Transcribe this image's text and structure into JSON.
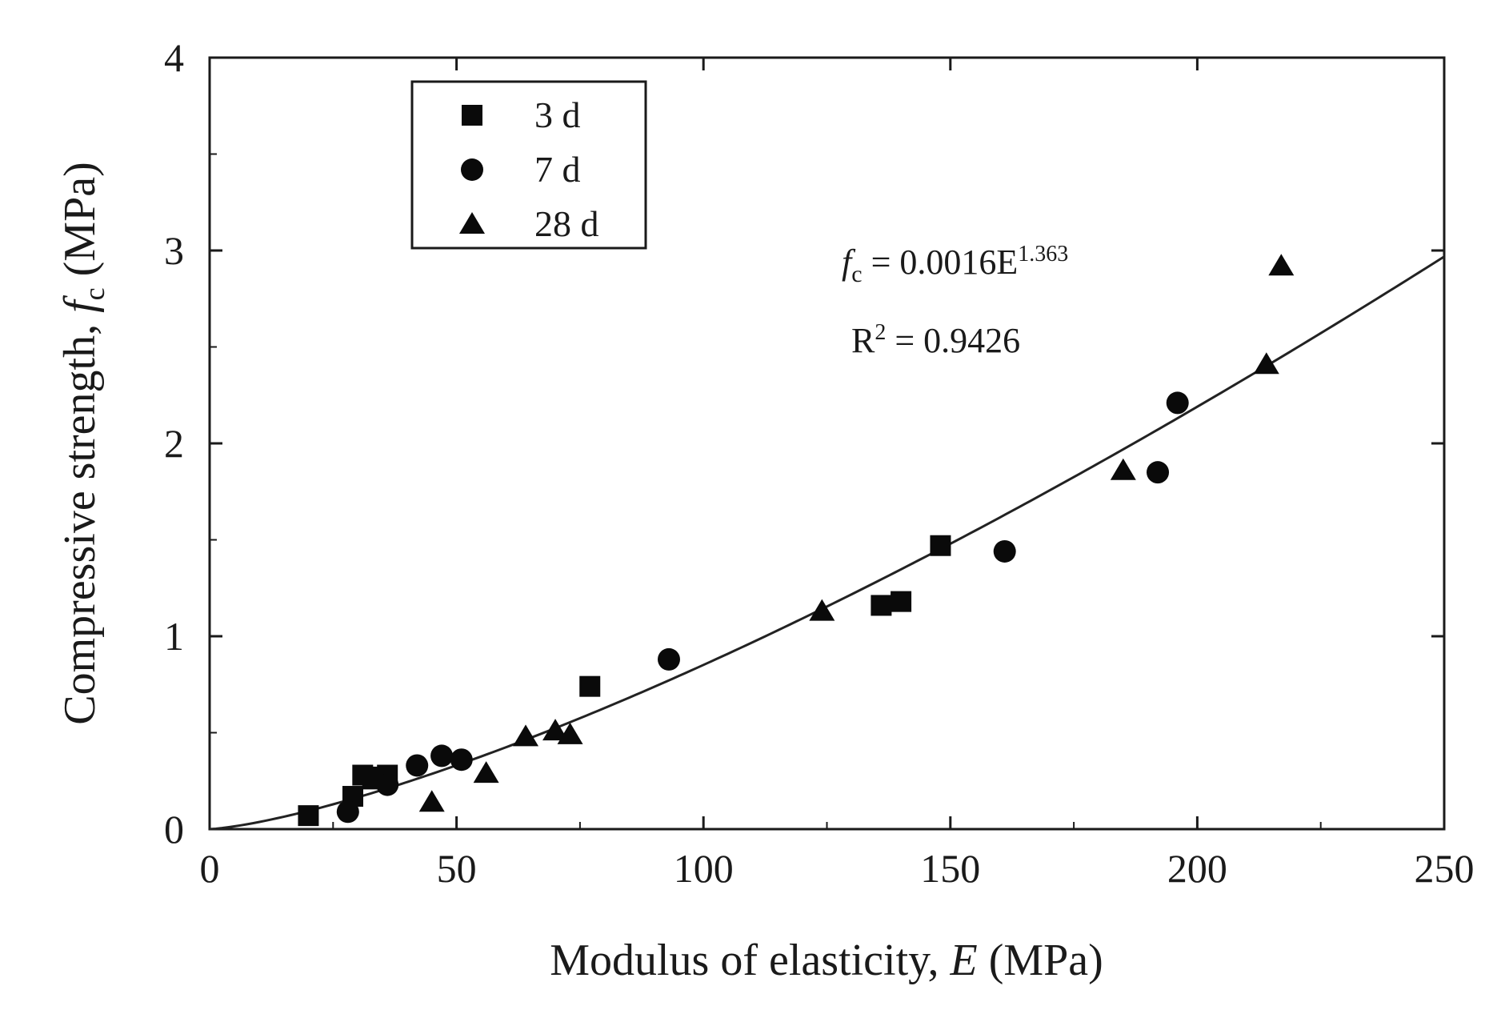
{
  "chart_data": {
    "type": "scatter",
    "xlabel": "Modulus of elasticity, E (MPa)",
    "ylabel": "Compressive strength, fc (MPa)",
    "xlabel_parts": {
      "pre": "Modulus of elasticity, ",
      "var": "E",
      "post": " (MPa)"
    },
    "ylabel_parts": {
      "pre": "Compressive strength, ",
      "var": "f",
      "sub": "c",
      "post": " (MPa)"
    },
    "xlim": [
      0,
      250
    ],
    "ylim": [
      0,
      4
    ],
    "x_ticks": [
      0,
      50,
      100,
      150,
      200,
      250
    ],
    "y_ticks": [
      0,
      1,
      2,
      3,
      4
    ],
    "grid": false,
    "legend_position": "top-left",
    "series": [
      {
        "name": "3 d",
        "marker": "square",
        "points": [
          [
            20,
            0.07
          ],
          [
            29,
            0.17
          ],
          [
            31,
            0.28
          ],
          [
            33,
            0.26
          ],
          [
            35,
            0.27
          ],
          [
            36,
            0.28
          ],
          [
            77,
            0.74
          ],
          [
            136,
            1.16
          ],
          [
            140,
            1.18
          ],
          [
            148,
            1.47
          ]
        ]
      },
      {
        "name": "7 d",
        "marker": "circle",
        "points": [
          [
            28,
            0.09
          ],
          [
            36,
            0.23
          ],
          [
            42,
            0.33
          ],
          [
            47,
            0.38
          ],
          [
            51,
            0.36
          ],
          [
            93,
            0.88
          ],
          [
            161,
            1.44
          ],
          [
            192,
            1.85
          ],
          [
            196,
            2.21
          ]
        ]
      },
      {
        "name": "28 d",
        "marker": "triangle",
        "points": [
          [
            45,
            0.14
          ],
          [
            56,
            0.29
          ],
          [
            64,
            0.48
          ],
          [
            70,
            0.51
          ],
          [
            73,
            0.49
          ],
          [
            124,
            1.13
          ],
          [
            185,
            1.86
          ],
          [
            214,
            2.41
          ],
          [
            217,
            2.92
          ]
        ]
      }
    ],
    "fit": {
      "type": "power",
      "coefficient": 0.0016,
      "exponent": 1.363,
      "x_range": [
        0,
        250
      ],
      "equation_parts": {
        "var": "f",
        "sub": "c",
        "body": " = 0.0016E",
        "sup": "1.363"
      },
      "r2_parts": {
        "pre": "R",
        "sup": "2",
        "post": " = 0.9426"
      }
    }
  },
  "colors": {
    "marker": "#0a0a0a",
    "axis": "#1a1a1a",
    "fit_line": "#222222",
    "background": "#ffffff"
  }
}
